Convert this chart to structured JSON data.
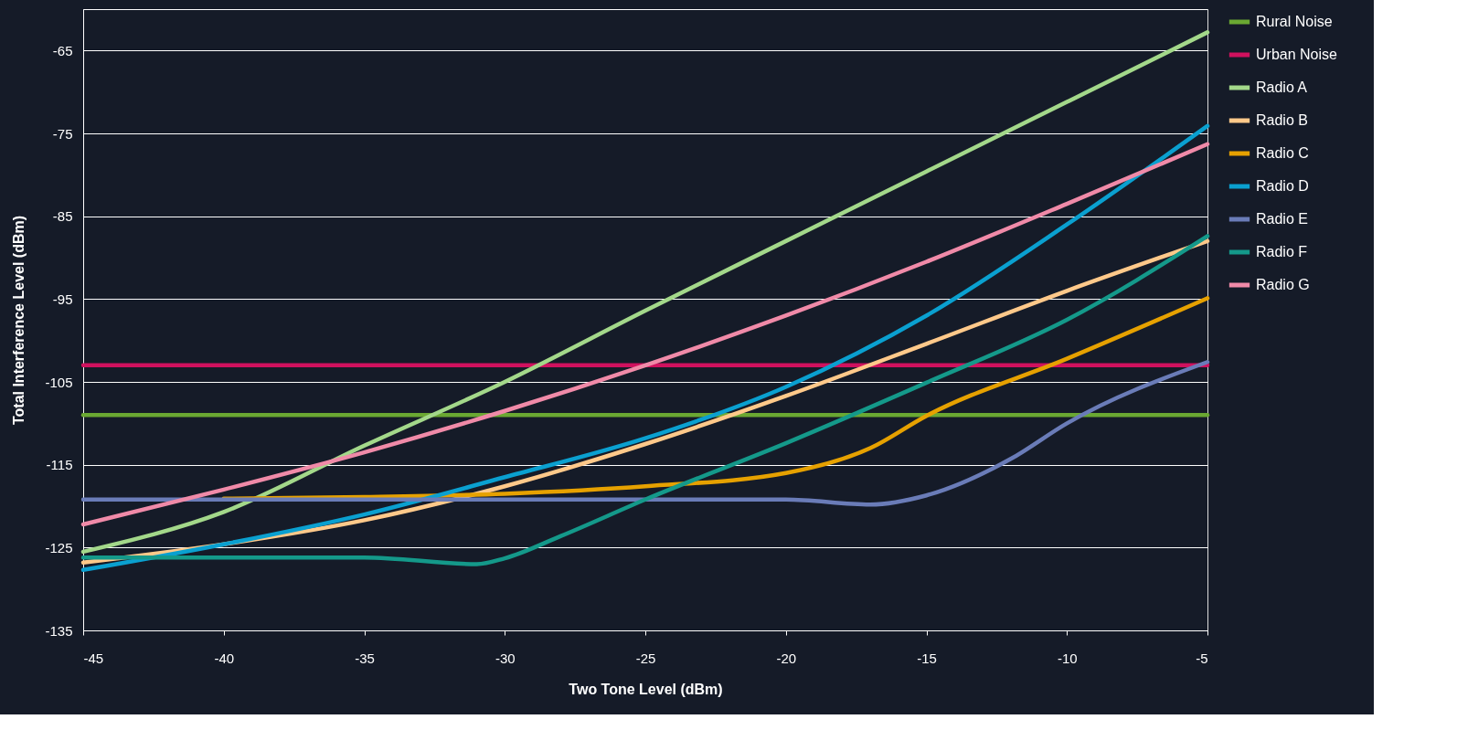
{
  "chart_data": {
    "type": "line",
    "xlabel": "Two Tone Level (dBm)",
    "ylabel": "Total Interference Level (dBm)",
    "xlim": [
      -45,
      -5
    ],
    "xticks": [
      -45,
      -40,
      -35,
      -30,
      -25,
      -20,
      -15,
      -10,
      -5
    ],
    "ylim": [
      -135,
      -60
    ],
    "yticks": [
      -135,
      -125,
      -115,
      -105,
      -95,
      -85,
      -75,
      -65,
      {
        "value": -60,
        "label": null
      }
    ],
    "grid": "y",
    "legend": "right",
    "marker": "none",
    "line_style": "solid",
    "series": [
      {
        "name": "Rural Noise",
        "color": "#6aa832",
        "x": [
          -45,
          -5
        ],
        "values": [
          -109,
          -109
        ]
      },
      {
        "name": "Urban Noise",
        "color": "#d0115e",
        "x": [
          -45,
          -5
        ],
        "values": [
          -103,
          -103
        ]
      },
      {
        "name": "Radio A",
        "color": "#a3d88a",
        "x": [
          -45,
          -40,
          -35,
          -30,
          -25,
          -20,
          -15,
          -10,
          -5
        ],
        "values": [
          -125.5,
          -120.7,
          -112.7,
          -105,
          -96.4,
          -88,
          -79.6,
          -71.2,
          -62.8
        ]
      },
      {
        "name": "Radio B",
        "color": "#ffc98a",
        "x": [
          -45,
          -40,
          -35,
          -30,
          -25,
          -20,
          -15,
          -10,
          -5
        ],
        "values": [
          -126.8,
          -124.6,
          -121.7,
          -117.6,
          -112.5,
          -106.7,
          -100.4,
          -94,
          -88
        ]
      },
      {
        "name": "Radio C",
        "color": "#e6a100",
        "x": [
          -40,
          -35,
          -30,
          -25,
          -20,
          -17,
          -15,
          -10,
          -5
        ],
        "values": [
          -119.1,
          -118.9,
          -118.5,
          -117.6,
          -116,
          -113,
          -109.1,
          -102.2,
          -94.9
        ]
      },
      {
        "name": "Radio D",
        "color": "#0aa0d0",
        "x": [
          -45,
          -40,
          -35,
          -30,
          -25,
          -20,
          -15,
          -10,
          -5
        ],
        "values": [
          -127.7,
          -124.6,
          -121,
          -116.5,
          -111.8,
          -105.6,
          -97,
          -86,
          -74.1
        ]
      },
      {
        "name": "Radio E",
        "color": "#6a7cb8",
        "x": [
          -45,
          -40,
          -35,
          -30,
          -25,
          -20,
          -17,
          -15,
          -12,
          -10,
          -5
        ],
        "values": [
          -119.2,
          -119.2,
          -119.2,
          -119.2,
          -119.2,
          -119.2,
          -119.8,
          -118.7,
          -114.3,
          -110,
          -102.6
        ]
      },
      {
        "name": "Radio F",
        "color": "#14998a",
        "x": [
          -45,
          -40,
          -35,
          -31,
          -30,
          -28,
          -25,
          -20,
          -15,
          -10,
          -5
        ],
        "values": [
          -126.2,
          -126.2,
          -126.2,
          -127,
          -126.3,
          -123.6,
          -119.2,
          -112.4,
          -105.1,
          -97.5,
          -87.4
        ]
      },
      {
        "name": "Radio G",
        "color": "#f08aa8",
        "x": [
          -45,
          -40,
          -35,
          -30,
          -25,
          -20,
          -15,
          -10,
          -5
        ],
        "values": [
          -122.2,
          -118,
          -113.5,
          -108.5,
          -103,
          -97,
          -90.5,
          -83.5,
          -76.3
        ]
      }
    ]
  }
}
